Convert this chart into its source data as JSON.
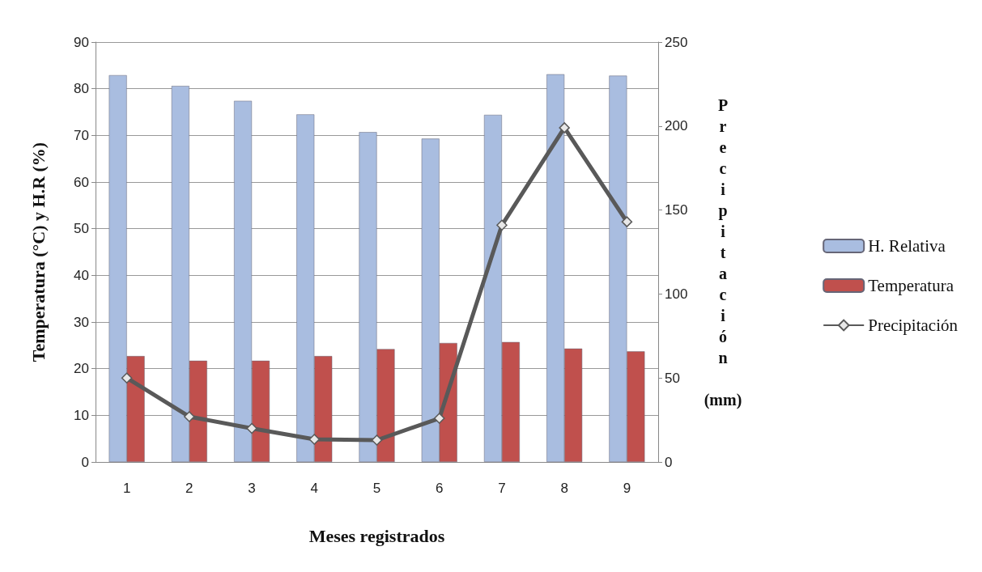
{
  "chart_data": {
    "type": "bar",
    "xlabel": "Meses registrados",
    "ylabel": "Temperatura (°C) y H.R (%)",
    "y2label": "Precipitación (mm)",
    "categories": [
      "1",
      "2",
      "3",
      "4",
      "5",
      "6",
      "7",
      "8",
      "9"
    ],
    "series": [
      {
        "name": "H. Relativa",
        "color": "#a9bde0",
        "values": [
          82.9,
          80.6,
          77.4,
          74.5,
          70.7,
          69.3,
          74.4,
          83.1,
          82.8
        ]
      },
      {
        "name": "Temperatura",
        "color": "#c0504d",
        "values": [
          22.7,
          21.7,
          21.7,
          22.7,
          24.2,
          25.5,
          25.7,
          24.3,
          23.7
        ]
      },
      {
        "name": "Precipitación",
        "type": "line",
        "axis": "y2",
        "color": "#595959",
        "marker": "diamond",
        "values": [
          50,
          27,
          20,
          13.5,
          13,
          26,
          141,
          199,
          143
        ]
      }
    ],
    "ylim": [
      0,
      90
    ],
    "yticks": [
      0,
      10,
      20,
      30,
      40,
      50,
      60,
      70,
      80,
      90
    ],
    "y2lim": [
      0,
      250
    ],
    "y2ticks": [
      0,
      50,
      100,
      150,
      200,
      250
    ],
    "grid": "y",
    "legend": "right"
  }
}
